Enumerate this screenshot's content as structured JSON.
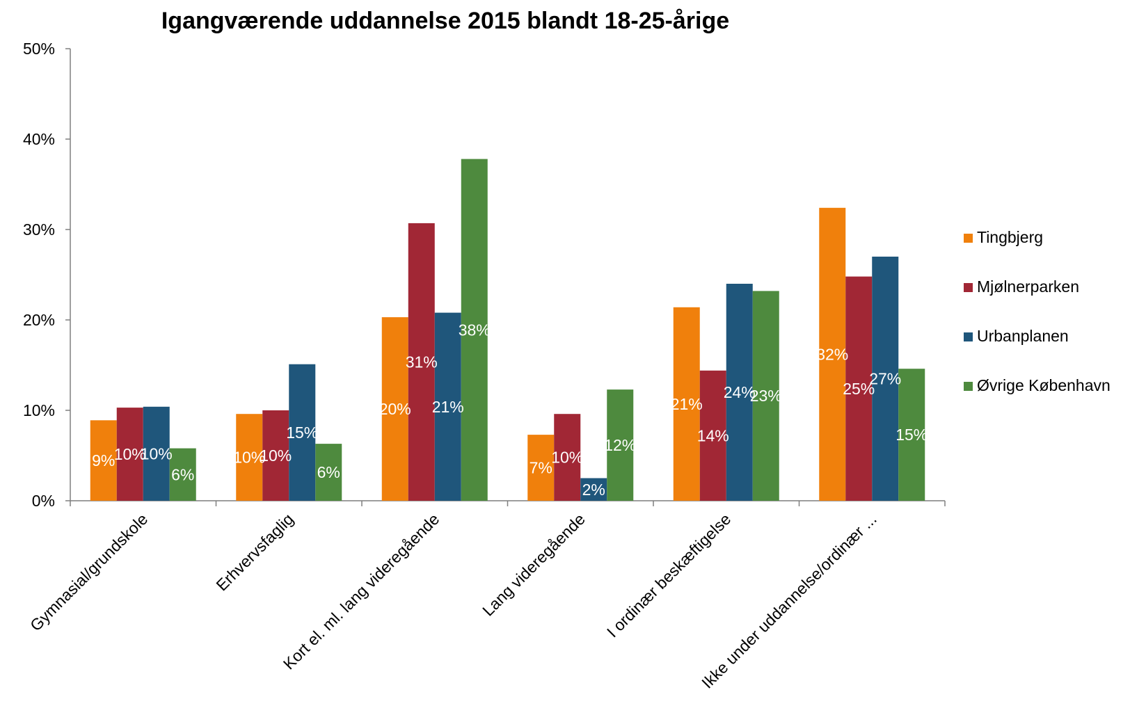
{
  "chart_data": {
    "type": "bar",
    "title": "Igangværende uddannelse 2015 blandt 18-25-årige",
    "xlabel": "",
    "ylabel": "",
    "ylim": [
      0,
      50
    ],
    "yticks": [
      0,
      10,
      20,
      30,
      40,
      50
    ],
    "ytick_labels": [
      "0%",
      "10%",
      "20%",
      "30%",
      "40%",
      "50%"
    ],
    "grid": false,
    "legend_position": "right",
    "categories": [
      "Gymnasial/grundskole",
      "Erhvervsfaglig",
      "Kort el. ml. lang videregående",
      "Lang videregående",
      "I ordinær beskæftigelse",
      "Ikke under uddannelse/ordinær ..."
    ],
    "series": [
      {
        "name": "Tingbjerg",
        "color": "#F0800C",
        "values": [
          8.9,
          9.6,
          20.3,
          7.3,
          21.4,
          32.4
        ],
        "labels": [
          "9%",
          "10%",
          "20%",
          "7%",
          "21%",
          "32%"
        ]
      },
      {
        "name": "Mjølnerparken",
        "color": "#A12735",
        "values": [
          10.3,
          10.0,
          30.7,
          9.6,
          14.4,
          24.8
        ],
        "labels": [
          "10%",
          "10%",
          "31%",
          "10%",
          "14%",
          "25%"
        ]
      },
      {
        "name": "Urbanplanen",
        "color": "#1F567B",
        "values": [
          10.4,
          15.1,
          20.8,
          2.5,
          24.0,
          27.0
        ],
        "labels": [
          "10%",
          "15%",
          "21%",
          "2%",
          "24%",
          "27%"
        ]
      },
      {
        "name": "Øvrige København",
        "color": "#4E8A3E",
        "values": [
          5.8,
          6.3,
          37.8,
          12.3,
          23.2,
          14.6
        ],
        "labels": [
          "6%",
          "6%",
          "38%",
          "12%",
          "23%",
          "15%"
        ]
      }
    ]
  }
}
